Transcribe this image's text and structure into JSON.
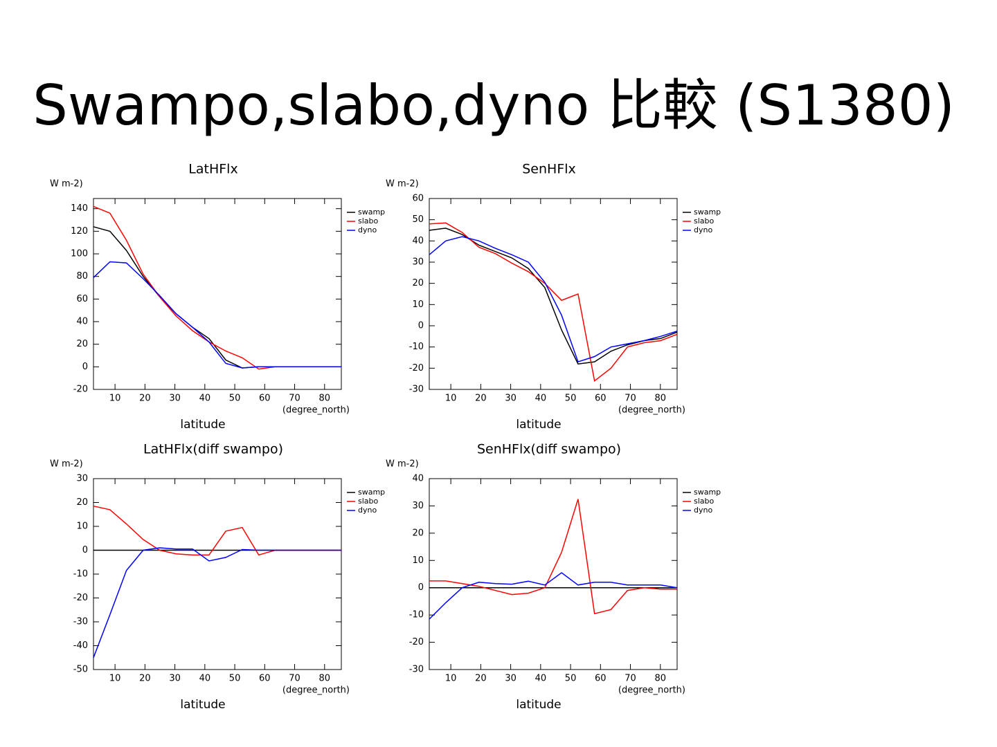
{
  "title": "Swampo,slabo,dyno 比較 (S1380)",
  "chart_data": [
    {
      "type": "line",
      "title": "LatHFlx",
      "y_unit": "W m-2)",
      "x_label": "latitude",
      "x_unit": "(degree_north)",
      "x": [
        2.8,
        8.3,
        13.8,
        19.4,
        24.9,
        30.4,
        35.9,
        41.4,
        47,
        52.5,
        58,
        63.5,
        69,
        74.6,
        80.1,
        85.6
      ],
      "xlim": [
        2.8,
        85.6
      ],
      "xticks": [
        10,
        20,
        30,
        40,
        50,
        60,
        70,
        80
      ],
      "ylim": [
        -20,
        149
      ],
      "yticks": [
        -20,
        0,
        20,
        40,
        60,
        80,
        100,
        120,
        140
      ],
      "series": [
        {
          "name": "swamp",
          "color": "#000000",
          "values": [
            124,
            120,
            103,
            80,
            62,
            47,
            35,
            25,
            6,
            -1,
            0,
            0,
            0,
            0,
            0,
            0
          ]
        },
        {
          "name": "slabo",
          "color": "#ff0000",
          "values": [
            142,
            136,
            112,
            82,
            62,
            45,
            32,
            22,
            14,
            8,
            -2,
            0,
            0,
            0,
            0,
            0
          ]
        },
        {
          "name": "dyno",
          "color": "#0000ff",
          "values": [
            79,
            93,
            92,
            78,
            63,
            47,
            35,
            22,
            3,
            -1,
            0,
            0,
            0,
            0,
            0,
            0
          ]
        }
      ]
    },
    {
      "type": "line",
      "title": "SenHFlx",
      "y_unit": "W m-2)",
      "x_label": "latitude",
      "x_unit": "(degree_north)",
      "x": [
        2.8,
        8.3,
        13.8,
        19.4,
        24.9,
        30.4,
        35.9,
        41.4,
        47,
        52.5,
        58,
        63.5,
        69,
        74.6,
        80.1,
        85.6
      ],
      "xlim": [
        2.8,
        85.6
      ],
      "xticks": [
        10,
        20,
        30,
        40,
        50,
        60,
        70,
        80
      ],
      "ylim": [
        -30,
        60
      ],
      "yticks": [
        -30,
        -20,
        -10,
        0,
        10,
        20,
        30,
        40,
        50,
        60
      ],
      "series": [
        {
          "name": "swamp",
          "color": "#000000",
          "values": [
            45,
            46,
            43,
            38,
            35,
            32,
            27,
            18,
            -2,
            -18,
            -17,
            -12,
            -9,
            -7,
            -6,
            -3
          ]
        },
        {
          "name": "slabo",
          "color": "#ff0000",
          "values": [
            48,
            48.5,
            44,
            37,
            34,
            29.5,
            25.5,
            20,
            12,
            15,
            -26,
            -20,
            -10,
            -8,
            -7,
            -4
          ]
        },
        {
          "name": "dyno",
          "color": "#0000ff",
          "values": [
            33.5,
            40,
            42,
            40,
            36.5,
            33.5,
            30,
            20.5,
            5,
            -17,
            -14.5,
            -10,
            -8.5,
            -7,
            -5,
            -2.5
          ]
        }
      ]
    },
    {
      "type": "line",
      "title": "LatHFlx(diff swampo)",
      "y_unit": "W m-2)",
      "x_label": "latitude",
      "x_unit": "(degree_north)",
      "x": [
        2.8,
        8.3,
        13.8,
        19.4,
        24.9,
        30.4,
        35.9,
        41.4,
        47,
        52.5,
        58,
        63.5,
        69,
        74.6,
        80.1,
        85.6
      ],
      "xlim": [
        2.8,
        85.6
      ],
      "xticks": [
        10,
        20,
        30,
        40,
        50,
        60,
        70,
        80
      ],
      "ylim": [
        -50,
        30
      ],
      "yticks": [
        -50,
        -40,
        -30,
        -20,
        -10,
        0,
        10,
        20,
        30
      ],
      "series": [
        {
          "name": "swamp",
          "color": "#000000",
          "values": [
            0,
            0,
            0,
            0,
            0,
            0,
            0,
            0,
            0,
            0,
            0,
            0,
            0,
            0,
            0,
            0
          ]
        },
        {
          "name": "slabo",
          "color": "#ff0000",
          "values": [
            18.5,
            17,
            11,
            4.5,
            0,
            -1.5,
            -2,
            -2,
            8,
            9.5,
            -2,
            0,
            0,
            0,
            0,
            0
          ]
        },
        {
          "name": "dyno",
          "color": "#0000ff",
          "values": [
            -45,
            -27,
            -8.5,
            0,
            1,
            0.5,
            0.5,
            -4.5,
            -3,
            0.3,
            0,
            0,
            0,
            0,
            0,
            0
          ]
        }
      ]
    },
    {
      "type": "line",
      "title": "SenHFlx(diff swampo)",
      "y_unit": "W m-2)",
      "x_label": "latitude",
      "x_unit": "(degree_north)",
      "x": [
        2.8,
        8.3,
        13.8,
        19.4,
        24.9,
        30.4,
        35.9,
        41.4,
        47,
        52.5,
        58,
        63.5,
        69,
        74.6,
        80.1,
        85.6
      ],
      "xlim": [
        2.8,
        85.6
      ],
      "xticks": [
        10,
        20,
        30,
        40,
        50,
        60,
        70,
        80
      ],
      "ylim": [
        -30,
        40
      ],
      "yticks": [
        -30,
        -20,
        -10,
        0,
        10,
        20,
        30,
        40
      ],
      "series": [
        {
          "name": "swamp",
          "color": "#000000",
          "values": [
            0,
            0,
            0,
            0,
            0,
            0,
            0,
            0,
            0,
            0,
            0,
            0,
            0,
            0,
            0,
            0
          ]
        },
        {
          "name": "slabo",
          "color": "#ff0000",
          "values": [
            2.5,
            2.5,
            1.5,
            0.5,
            -1,
            -2.5,
            -2,
            0,
            13,
            32.5,
            -9.5,
            -8,
            -1,
            0,
            -0.5,
            -0.5
          ]
        },
        {
          "name": "dyno",
          "color": "#0000ff",
          "values": [
            -11.5,
            -5.5,
            0,
            2,
            1.5,
            1.3,
            2.4,
            1,
            5.5,
            1,
            2,
            2,
            1,
            1,
            1,
            0
          ]
        }
      ]
    }
  ]
}
